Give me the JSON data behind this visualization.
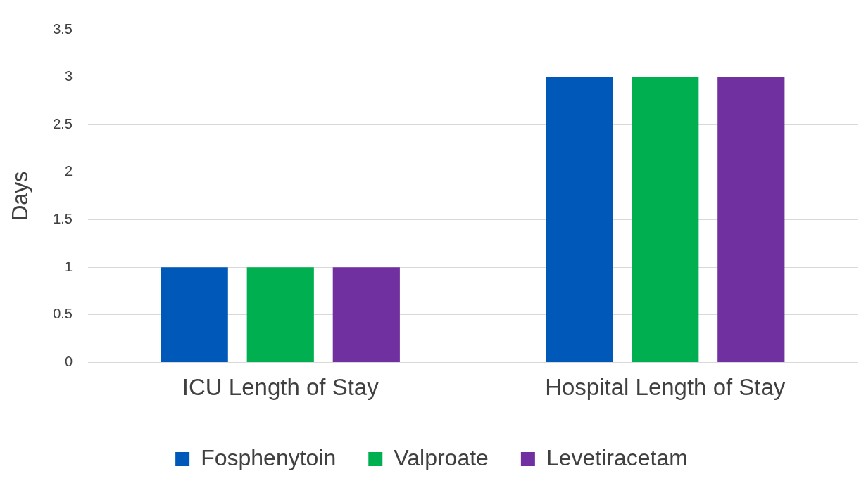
{
  "chart_data": {
    "type": "bar",
    "ylabel": "Days",
    "categories": [
      "ICU Length of Stay",
      "Hospital Length of Stay"
    ],
    "series": [
      {
        "name": "Fosphenytoin",
        "color": "#0058b8",
        "values": [
          1,
          3
        ]
      },
      {
        "name": "Valproate",
        "color": "#00b050",
        "values": [
          1,
          3
        ]
      },
      {
        "name": "Levetiracetam",
        "color": "#7030a0",
        "values": [
          1,
          3
        ]
      }
    ],
    "ylim": [
      0,
      3.5
    ],
    "yticks": [
      0,
      0.5,
      1,
      1.5,
      2,
      2.5,
      3,
      3.5
    ],
    "grid": "y",
    "legend": "bottom"
  }
}
